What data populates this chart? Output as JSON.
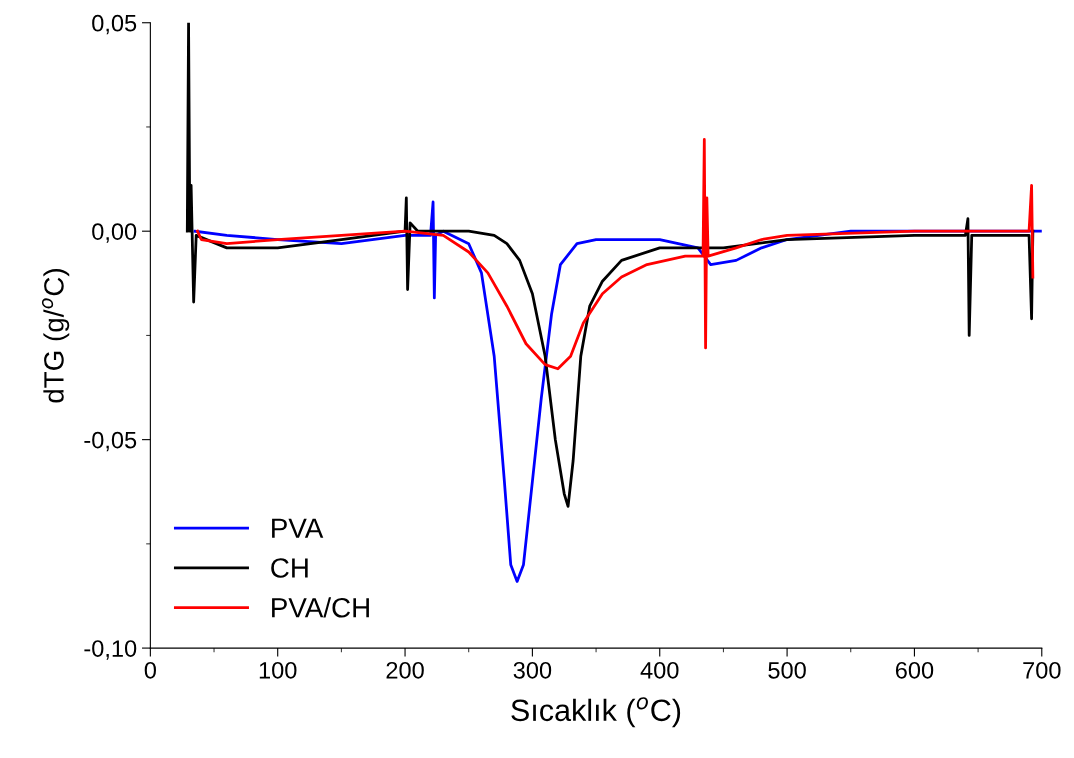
{
  "chart_data": {
    "type": "line",
    "xlabel": "Sıcaklık ($^{o}$C)",
    "ylabel": "dTG (g/$^{o}$C)",
    "xlim": [
      0,
      700
    ],
    "xticks": [
      0,
      100,
      200,
      300,
      400,
      500,
      600,
      700
    ],
    "ylim": [
      -0.1,
      0.05
    ],
    "yticks": [
      {
        "value": -0.1,
        "label": "-0,10"
      },
      {
        "value": -0.05,
        "label": "-0,05"
      },
      {
        "value": 0,
        "label": "0,00"
      },
      {
        "value": 0.05,
        "label": "0,05"
      }
    ],
    "grid": false,
    "legend": "bottom left",
    "marker": "none",
    "line_style": "solid",
    "series": [
      {
        "name": "PVA",
        "color": "#0000ff",
        "x": [
          35,
          60,
          100,
          150,
          200,
          220,
          222,
          223,
          224,
          230,
          250,
          260,
          270,
          278,
          283,
          288,
          293,
          300,
          307,
          315,
          322,
          335,
          350,
          400,
          430,
          440,
          460,
          480,
          500,
          550,
          700
        ],
        "values": [
          0,
          -0.001,
          -0.002,
          -0.003,
          -0.001,
          -0.001,
          0.007,
          -0.016,
          -0.001,
          0,
          -0.003,
          -0.01,
          -0.03,
          -0.06,
          -0.08,
          -0.084,
          -0.08,
          -0.06,
          -0.04,
          -0.02,
          -0.008,
          -0.003,
          -0.002,
          -0.002,
          -0.004,
          -0.008,
          -0.007,
          -0.004,
          -0.002,
          0,
          0
        ]
      },
      {
        "name": "CH",
        "color": "#000000",
        "x": [
          29,
          30,
          31,
          32,
          34,
          36,
          60,
          100,
          150,
          200,
          201,
          202,
          204,
          210,
          250,
          270,
          280,
          290,
          300,
          310,
          318,
          325,
          328,
          332,
          338,
          345,
          355,
          370,
          400,
          450,
          500,
          600,
          640,
          642,
          643,
          645,
          690,
          692,
          693
        ],
        "values": [
          0,
          0.05,
          0,
          0.011,
          -0.017,
          -0.001,
          -0.004,
          -0.004,
          -0.002,
          0,
          0.008,
          -0.014,
          0.002,
          0,
          0,
          -0.001,
          -0.003,
          -0.007,
          -0.015,
          -0.03,
          -0.05,
          -0.063,
          -0.066,
          -0.055,
          -0.03,
          -0.018,
          -0.012,
          -0.007,
          -0.004,
          -0.004,
          -0.002,
          -0.001,
          -0.001,
          0.003,
          -0.025,
          -0.001,
          -0.001,
          -0.021,
          0
        ]
      },
      {
        "name": "PVA/CH",
        "color": "#ff0000",
        "x": [
          37,
          40,
          60,
          100,
          150,
          200,
          230,
          250,
          265,
          280,
          295,
          310,
          320,
          330,
          340,
          355,
          370,
          390,
          420,
          434,
          435,
          436,
          437,
          438,
          460,
          480,
          500,
          600,
          690,
          692,
          693
        ],
        "values": [
          0,
          -0.002,
          -0.003,
          -0.002,
          -0.001,
          0,
          -0.001,
          -0.005,
          -0.01,
          -0.018,
          -0.027,
          -0.032,
          -0.033,
          -0.03,
          -0.022,
          -0.015,
          -0.011,
          -0.008,
          -0.006,
          -0.006,
          0.022,
          -0.028,
          0.008,
          -0.006,
          -0.004,
          -0.002,
          -0.001,
          0,
          0,
          0.011,
          -0.011
        ]
      }
    ]
  }
}
